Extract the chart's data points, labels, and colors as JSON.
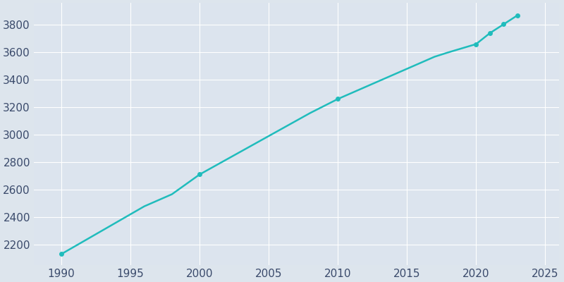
{
  "years": [
    1990,
    1991,
    1992,
    1993,
    1994,
    1995,
    1996,
    1997,
    1998,
    1999,
    2000,
    2001,
    2002,
    2003,
    2004,
    2005,
    2006,
    2007,
    2008,
    2009,
    2010,
    2011,
    2012,
    2013,
    2014,
    2015,
    2016,
    2017,
    2018,
    2019,
    2020,
    2021,
    2022,
    2023
  ],
  "population": [
    2130,
    2188,
    2246,
    2304,
    2362,
    2420,
    2478,
    2522,
    2566,
    2638,
    2710,
    2766,
    2822,
    2878,
    2934,
    2990,
    3046,
    3102,
    3158,
    3209,
    3260,
    3304,
    3348,
    3392,
    3436,
    3480,
    3524,
    3568,
    3600,
    3630,
    3660,
    3740,
    3805,
    3870
  ],
  "line_color": "#20BCBC",
  "marker_color": "#20BCBC",
  "background_color": "#dde5ed",
  "plot_bg_color": "#dce4ee",
  "grid_color": "#ffffff",
  "tick_color": "#3a4a6b",
  "xlim": [
    1988,
    2026
  ],
  "ylim": [
    2050,
    3960
  ],
  "xticks": [
    1990,
    1995,
    2000,
    2005,
    2010,
    2015,
    2020,
    2025
  ],
  "yticks": [
    2200,
    2400,
    2600,
    2800,
    3000,
    3200,
    3400,
    3600,
    3800
  ],
  "marker_years": [
    1990,
    2000,
    2010,
    2020,
    2021,
    2022,
    2023
  ],
  "marker_population": [
    2130,
    2710,
    3260,
    3660,
    3740,
    3805,
    3870
  ],
  "figsize": [
    8.0,
    4.0
  ],
  "dpi": 100
}
